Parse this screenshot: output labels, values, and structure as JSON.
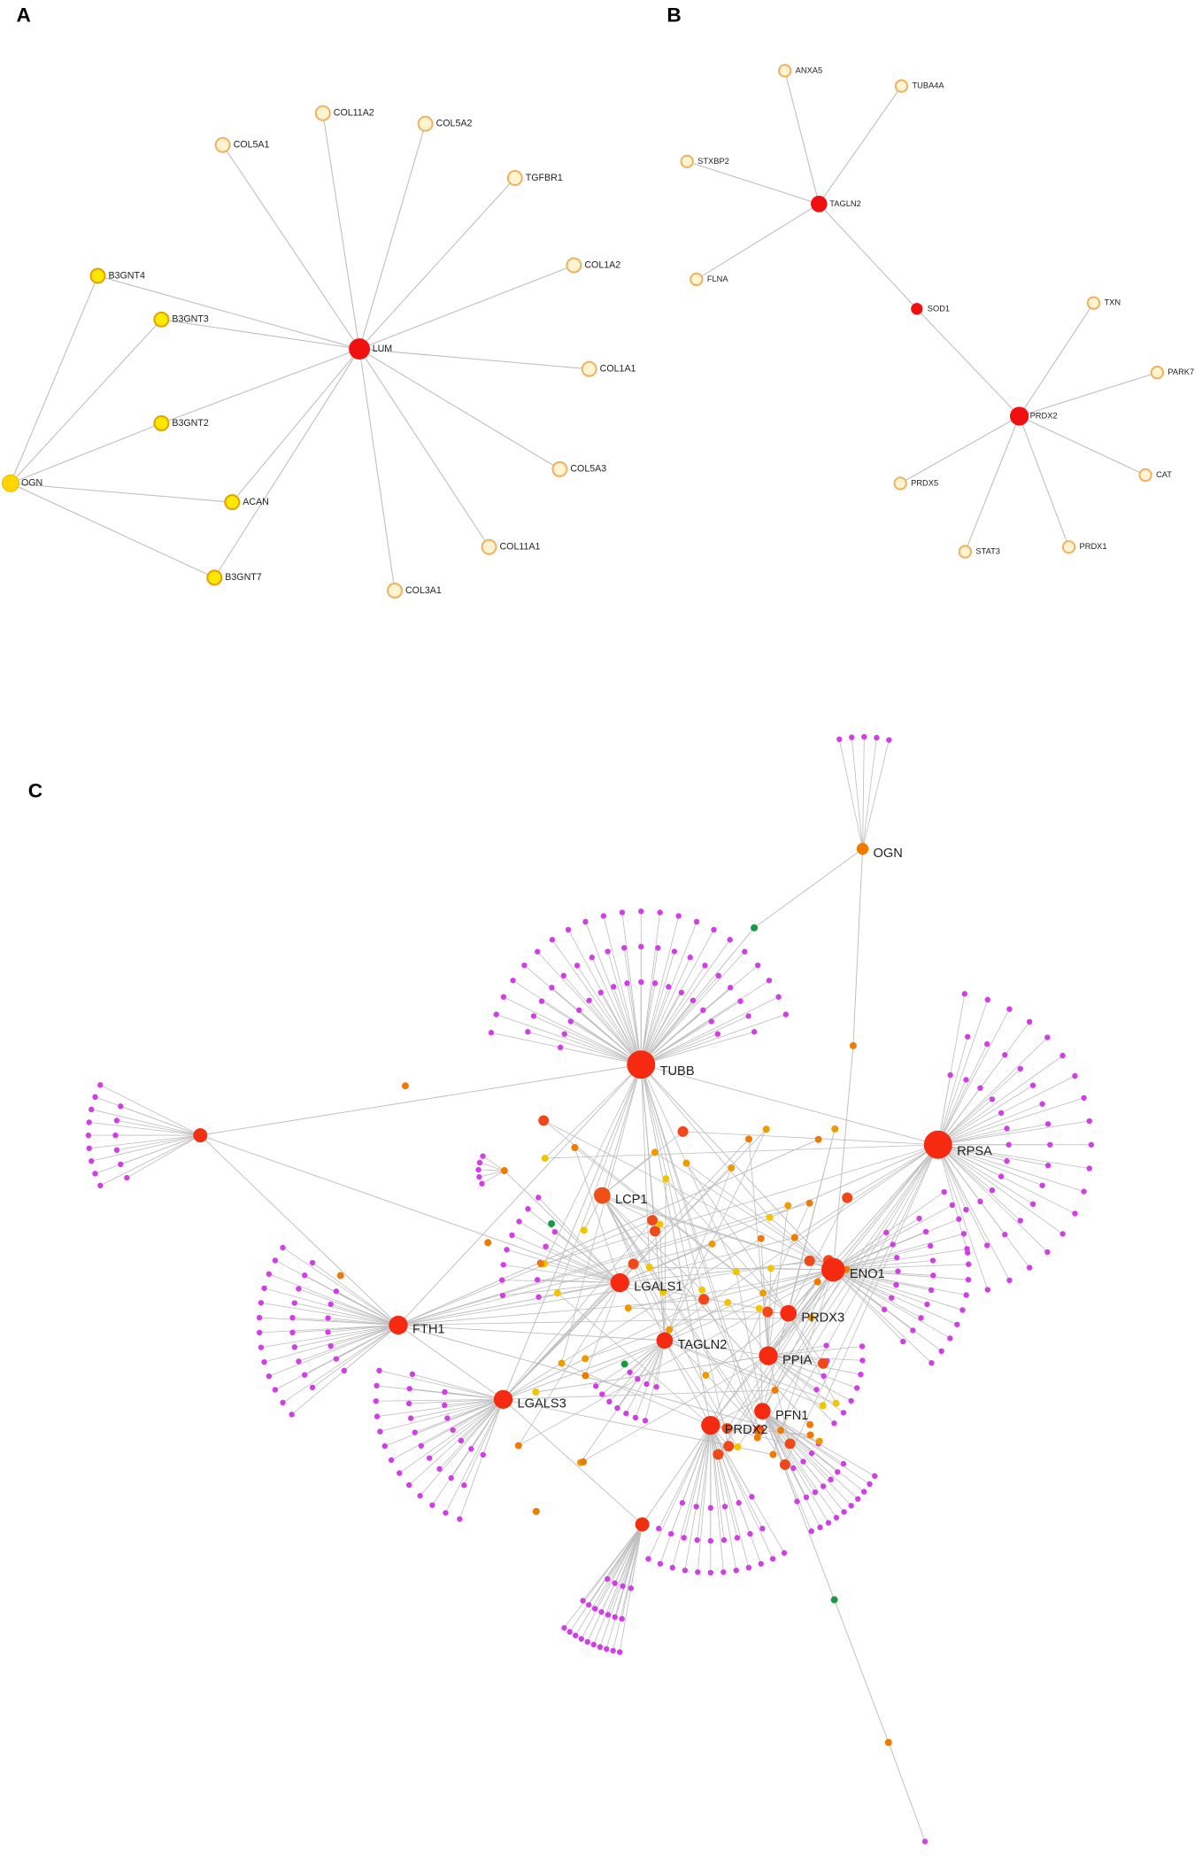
{
  "panels": [
    {
      "label": "A",
      "nodes": [
        "LUM",
        "COL5A1",
        "COL11A2",
        "COL5A2",
        "TGFBR1",
        "COL1A2",
        "COL1A1",
        "COL5A3",
        "COL11A1",
        "COL3A1",
        "B3GNT4",
        "B3GNT3",
        "B3GNT2",
        "OGN",
        "ACAN",
        "B3GNT7"
      ]
    },
    {
      "label": "B",
      "nodes": [
        "TAGLN2",
        "SOD1",
        "PRDX2",
        "ANXA5",
        "TUBA4A",
        "STXBP2",
        "FLNA",
        "TXN",
        "PARK7",
        "CAT",
        "PRDX1",
        "STAT3",
        "PRDX5"
      ]
    },
    {
      "label": "C",
      "nodes": [
        "TUBB",
        "RPSA",
        "ENO1",
        "LGALS1",
        "FTH1",
        "LGALS3",
        "TAGLN2",
        "PRDX3",
        "PPIA",
        "PFN1",
        "PRDX2",
        "LCP1",
        "OGN"
      ]
    }
  ]
}
